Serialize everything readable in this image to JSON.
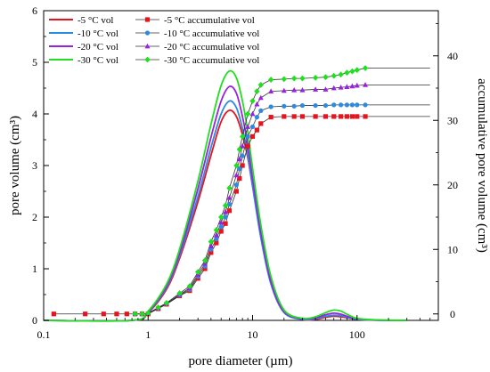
{
  "chart_data": {
    "type": "line",
    "xlabel": "pore diameter (µm)",
    "ylabel": "pore volume (cm³)",
    "y2label": "accumulative pore volume (cm³)",
    "xscale": "log",
    "xlim": [
      0.1,
      600
    ],
    "ylim": [
      0,
      6
    ],
    "y2lim": [
      -1,
      47
    ],
    "x_ticks": [
      0.1,
      1,
      10,
      100
    ],
    "x_tick_labels": [
      "0.1",
      "1",
      "10",
      "100"
    ],
    "y_ticks": [
      0,
      1,
      2,
      3,
      4,
      5,
      6
    ],
    "y_tick_labels": [
      "0",
      "1",
      "2",
      "3",
      "4",
      "5",
      "6"
    ],
    "y2_ticks": [
      0,
      10,
      20,
      30,
      40
    ],
    "y2_tick_labels": [
      "0",
      "10",
      "20",
      "30",
      "40"
    ],
    "grid": false,
    "legend_position": "top-left",
    "series": [
      {
        "name": "-5 °C vol",
        "axis": "left",
        "kind": "line",
        "color": "#e8141d",
        "x": [
          0.1,
          0.7,
          1,
          1.5,
          2,
          3,
          4,
          5,
          6,
          7,
          8,
          9,
          10,
          12,
          15,
          20,
          30,
          40,
          50,
          60,
          70,
          80,
          100,
          150,
          300
        ],
        "y": [
          0,
          0,
          0.15,
          0.6,
          1.2,
          2.3,
          3.2,
          3.85,
          4.07,
          3.95,
          3.6,
          3.15,
          2.6,
          1.7,
          0.8,
          0.2,
          0.02,
          0.02,
          0.06,
          0.08,
          0.07,
          0.05,
          0.02,
          0.005,
          0
        ]
      },
      {
        "name": "-10 °C vol",
        "axis": "left",
        "kind": "line",
        "color": "#2a8be0",
        "x": [
          0.1,
          0.7,
          1,
          1.5,
          2,
          3,
          4,
          5,
          6,
          7,
          8,
          9,
          10,
          12,
          15,
          20,
          30,
          40,
          50,
          60,
          70,
          80,
          100,
          150,
          300
        ],
        "y": [
          0,
          0,
          0.16,
          0.63,
          1.25,
          2.4,
          3.35,
          4.0,
          4.25,
          4.12,
          3.72,
          3.2,
          2.6,
          1.6,
          0.7,
          0.15,
          0.02,
          0.03,
          0.08,
          0.1,
          0.09,
          0.06,
          0.02,
          0.005,
          0
        ]
      },
      {
        "name": "-20 °C vol",
        "axis": "left",
        "kind": "line",
        "color": "#9b21e0",
        "x": [
          0.1,
          0.7,
          1,
          1.5,
          2,
          3,
          4,
          5,
          6,
          7,
          8,
          9,
          10,
          12,
          15,
          20,
          30,
          40,
          50,
          60,
          70,
          80,
          100,
          150,
          300
        ],
        "y": [
          0,
          0,
          0.17,
          0.66,
          1.3,
          2.55,
          3.55,
          4.25,
          4.53,
          4.4,
          3.95,
          3.4,
          2.75,
          1.7,
          0.75,
          0.17,
          0.03,
          0.05,
          0.11,
          0.14,
          0.12,
          0.08,
          0.03,
          0.005,
          0
        ]
      },
      {
        "name": "-30 °C vol",
        "axis": "left",
        "kind": "line",
        "color": "#1ee01e",
        "x": [
          0.1,
          0.7,
          1,
          1.5,
          2,
          3,
          4,
          5,
          6,
          7,
          8,
          9,
          10,
          12,
          15,
          20,
          30,
          40,
          50,
          60,
          70,
          80,
          100,
          150,
          300
        ],
        "y": [
          0,
          0,
          0.18,
          0.7,
          1.38,
          2.7,
          3.8,
          4.55,
          4.83,
          4.7,
          4.25,
          3.65,
          2.95,
          1.85,
          0.85,
          0.2,
          0.04,
          0.07,
          0.15,
          0.2,
          0.18,
          0.12,
          0.04,
          0.01,
          0
        ]
      },
      {
        "name": "-5 °C accumulative vol",
        "axis": "right",
        "kind": "line-marker",
        "marker": "square",
        "color": "#e8141d",
        "line_color": "#333333",
        "flat_to": 500,
        "x": [
          0.125,
          0.25,
          0.375,
          0.5,
          0.625,
          0.75,
          0.875,
          1,
          1.25,
          1.5,
          2,
          2.5,
          3,
          3.5,
          4,
          4.5,
          5,
          5.5,
          6,
          7,
          7.5,
          8,
          9,
          10,
          11,
          12,
          15,
          20,
          25,
          30,
          40,
          50,
          60,
          70,
          80,
          90,
          100,
          120
        ],
        "y": [
          0,
          0,
          0,
          0,
          0,
          0,
          0,
          0,
          0.8,
          1.5,
          2.8,
          3.6,
          5.5,
          7.0,
          9.5,
          11,
          12.8,
          14,
          16,
          19,
          21,
          23,
          26,
          27.5,
          28.5,
          29.5,
          30.5,
          30.6,
          30.6,
          30.6,
          30.6,
          30.6,
          30.6,
          30.6,
          30.6,
          30.6,
          30.6,
          30.6
        ]
      },
      {
        "name": "-10 °C accumulative vol",
        "axis": "right",
        "kind": "line-marker",
        "marker": "circle",
        "color": "#2a8be0",
        "line_color": "#333333",
        "flat_to": 500,
        "x": [
          0.75,
          0.875,
          1,
          1.25,
          1.5,
          2,
          2.5,
          3,
          3.5,
          4,
          4.5,
          5,
          5.5,
          6,
          7,
          7.5,
          8,
          9,
          10,
          11,
          12,
          15,
          20,
          25,
          30,
          40,
          50,
          60,
          70,
          80,
          90,
          100,
          120
        ],
        "y": [
          0,
          0,
          0.1,
          0.9,
          1.6,
          2.9,
          3.8,
          5.8,
          7.4,
          10,
          11.6,
          13.5,
          15,
          17,
          20,
          22.5,
          24.5,
          27.5,
          29,
          30.5,
          31.5,
          32.1,
          32.2,
          32.2,
          32.3,
          32.3,
          32.3,
          32.4,
          32.4,
          32.4,
          32.4,
          32.4,
          32.4
        ]
      },
      {
        "name": "-20 °C accumulative vol",
        "axis": "right",
        "kind": "line-marker",
        "marker": "triangle",
        "color": "#9b21e0",
        "line_color": "#333333",
        "flat_to": 500,
        "x": [
          0.75,
          0.875,
          1,
          1.25,
          1.5,
          2,
          2.5,
          3,
          3.5,
          4,
          4.5,
          5,
          5.5,
          6,
          7,
          7.5,
          8,
          9,
          10,
          11,
          12,
          15,
          20,
          25,
          30,
          40,
          50,
          60,
          70,
          80,
          90,
          100,
          120
        ],
        "y": [
          0,
          0,
          0.1,
          0.9,
          1.6,
          3.0,
          4.0,
          6.1,
          7.8,
          10.5,
          12.2,
          14.2,
          15.8,
          18,
          21.5,
          24,
          26,
          29,
          31,
          32.5,
          33.5,
          34.5,
          34.6,
          34.7,
          34.7,
          34.8,
          34.8,
          35,
          35.1,
          35.2,
          35.3,
          35.4,
          35.5
        ]
      },
      {
        "name": "-30 °C accumulative vol",
        "axis": "right",
        "kind": "line-marker",
        "marker": "diamond",
        "color": "#1ee01e",
        "line_color": "#333333",
        "flat_to": 500,
        "x": [
          0.75,
          0.875,
          1,
          1.25,
          1.5,
          2,
          2.5,
          3,
          3.5,
          4,
          4.5,
          5,
          5.5,
          6,
          7,
          7.5,
          8,
          9,
          10,
          11,
          12,
          15,
          20,
          25,
          30,
          40,
          50,
          60,
          70,
          80,
          90,
          100,
          120
        ],
        "y": [
          0,
          0,
          0.1,
          1.0,
          1.7,
          3.2,
          4.3,
          6.5,
          8.3,
          11.2,
          13,
          15,
          16.8,
          19.5,
          23,
          25.5,
          27.5,
          31,
          33,
          34.5,
          35.5,
          36.3,
          36.4,
          36.5,
          36.5,
          36.6,
          36.7,
          36.9,
          37.1,
          37.4,
          37.6,
          37.8,
          38.1
        ]
      }
    ]
  }
}
